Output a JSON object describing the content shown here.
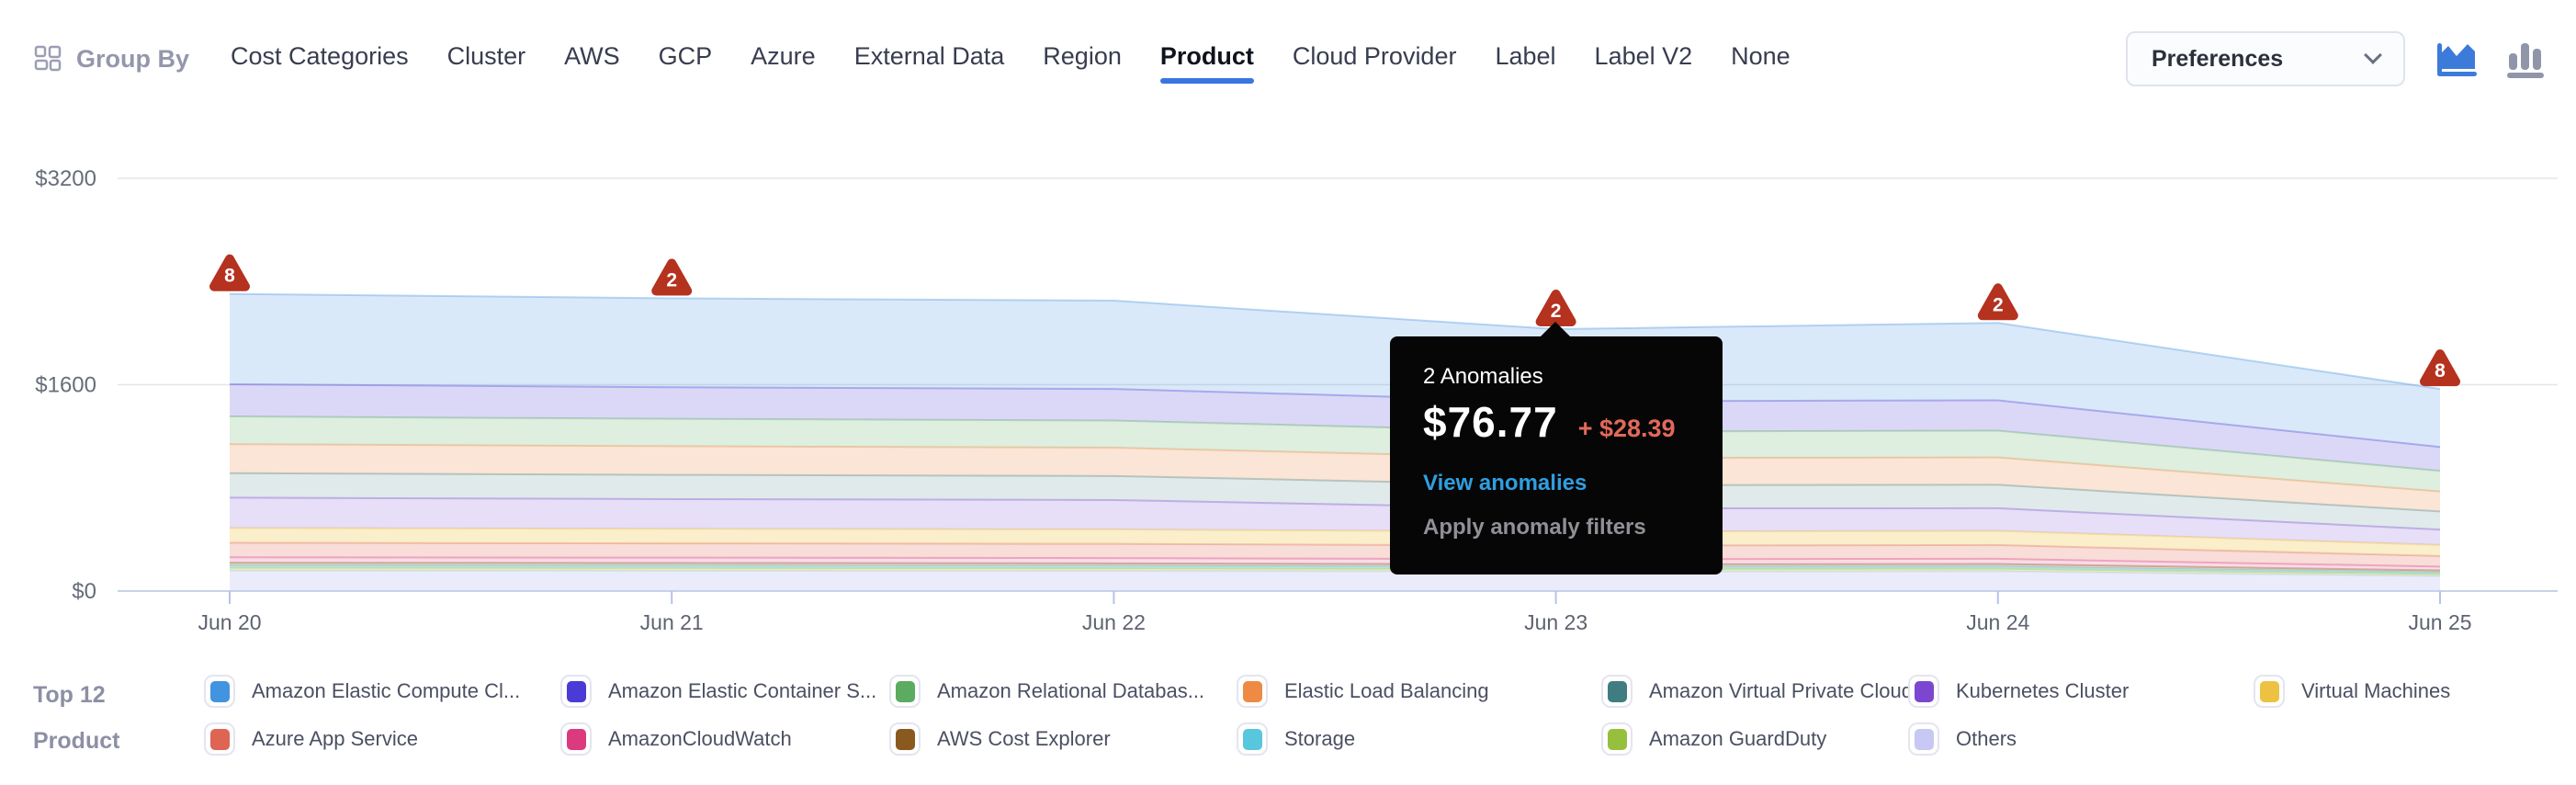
{
  "header": {
    "group_by": {
      "label": "Group By"
    },
    "nav": {
      "items": [
        {
          "label": "Cost Categories",
          "active": false
        },
        {
          "label": "Cluster",
          "active": false
        },
        {
          "label": "AWS",
          "active": false
        },
        {
          "label": "GCP",
          "active": false
        },
        {
          "label": "Azure",
          "active": false
        },
        {
          "label": "External Data",
          "active": false
        },
        {
          "label": "Region",
          "active": false
        },
        {
          "label": "Product",
          "active": true
        },
        {
          "label": "Cloud Provider",
          "active": false
        },
        {
          "label": "Label",
          "active": false
        },
        {
          "label": "Label V2",
          "active": false
        },
        {
          "label": "None",
          "active": false
        }
      ],
      "active_underline_color": "#3b76e0"
    },
    "preferences": {
      "label": "Preferences"
    },
    "chart_type_toggle": {
      "active": "area",
      "active_color": "#3d7bdb",
      "inactive_color": "#9095a9"
    }
  },
  "chart_data": {
    "type": "area",
    "stacked": true,
    "x": [
      "Jun 20",
      "Jun 21",
      "Jun 22",
      "Jun 23",
      "Jun 24",
      "Jun 25"
    ],
    "y_axis": {
      "min": 0,
      "max": 3200,
      "ticks": [
        {
          "value": 0,
          "label": "$0"
        },
        {
          "value": 1600,
          "label": "$1600"
        },
        {
          "value": 3200,
          "label": "$3200"
        }
      ]
    },
    "grid": true,
    "legend_position": "bottom",
    "series": [
      {
        "name": "Amazon Elastic Compute Cloud",
        "color": "#4293E0",
        "fill_alpha": 0.2,
        "values": [
          700,
          690,
          685,
          560,
          600,
          450
        ]
      },
      {
        "name": "Amazon Elastic Container Service",
        "color": "#4A3AD6",
        "fill_alpha": 0.2,
        "values": [
          250,
          245,
          245,
          235,
          235,
          185
        ]
      },
      {
        "name": "Amazon Relational Database Service",
        "color": "#5BAB60",
        "fill_alpha": 0.2,
        "values": [
          215,
          212,
          210,
          205,
          208,
          160
        ]
      },
      {
        "name": "Elastic Load Balancing",
        "color": "#EE8A43",
        "fill_alpha": 0.22,
        "values": [
          225,
          222,
          220,
          210,
          212,
          155
        ]
      },
      {
        "name": "Amazon Virtual Private Cloud",
        "color": "#3F7D80",
        "fill_alpha": 0.16,
        "values": [
          190,
          188,
          186,
          180,
          182,
          140
        ]
      },
      {
        "name": "Kubernetes Cluster",
        "color": "#7B47D1",
        "fill_alpha": 0.18,
        "values": [
          235,
          230,
          228,
          180,
          175,
          120
        ]
      },
      {
        "name": "Virtual Machines",
        "color": "#EDC243",
        "fill_alpha": 0.28,
        "values": [
          115,
          113,
          112,
          108,
          110,
          85
        ]
      },
      {
        "name": "Azure App Service",
        "color": "#DE6454",
        "fill_alpha": 0.22,
        "values": [
          112,
          111,
          110,
          106,
          107,
          82
        ]
      },
      {
        "name": "AmazonCloudWatch",
        "color": "#DB3A7F",
        "fill_alpha": 0.18,
        "values": [
          42,
          41,
          41,
          39,
          40,
          30
        ]
      },
      {
        "name": "AWS Cost Explorer",
        "color": "#8A591F",
        "fill_alpha": 0.25,
        "values": [
          22,
          22,
          21,
          21,
          21,
          16
        ]
      },
      {
        "name": "Storage",
        "color": "#58C6DD",
        "fill_alpha": 0.3,
        "values": [
          16,
          16,
          16,
          15,
          15,
          12
        ]
      },
      {
        "name": "Amazon GuardDuty",
        "color": "#96BF3D",
        "fill_alpha": 0.28,
        "values": [
          24,
          24,
          23,
          22,
          22,
          17
        ]
      },
      {
        "name": "Others",
        "color": "#C7C8F4",
        "fill_alpha": 0.35,
        "values": [
          158,
          156,
          155,
          150,
          152,
          115
        ]
      }
    ],
    "anomalies": [
      {
        "x": "Jun 20",
        "count": 8
      },
      {
        "x": "Jun 21",
        "count": 2
      },
      {
        "x": "Jun 23",
        "count": 2
      },
      {
        "x": "Jun 24",
        "count": 2
      },
      {
        "x": "Jun 25",
        "count": 8
      }
    ],
    "anomaly_marker_color": "#b5321f"
  },
  "tooltip": {
    "title": "2 Anomalies",
    "amount": "$76.77",
    "delta": "+ $28.39",
    "link_primary": "View anomalies",
    "link_secondary": "Apply anomaly filters",
    "colors": {
      "background": "#060606",
      "delta": "#e2695a",
      "link": "#2f9fe0",
      "secondary_link": "#8f9196"
    }
  },
  "legend": {
    "title_lines": [
      "Top 12",
      "Product"
    ],
    "items": [
      {
        "label": "Amazon Elastic Compute Cl...",
        "color": "#4293E0"
      },
      {
        "label": "Amazon Elastic Container S...",
        "color": "#4A3AD6"
      },
      {
        "label": "Amazon Relational Databas...",
        "color": "#5BAB60"
      },
      {
        "label": "Elastic Load Balancing",
        "color": "#EE8A43"
      },
      {
        "label": "Amazon Virtual Private Cloud",
        "color": "#3F7D80"
      },
      {
        "label": "Kubernetes Cluster",
        "color": "#7B47D1"
      },
      {
        "label": "Virtual Machines",
        "color": "#EDC243"
      },
      {
        "label": "Azure App Service",
        "color": "#DE6454"
      },
      {
        "label": "AmazonCloudWatch",
        "color": "#DB3A7F"
      },
      {
        "label": "AWS Cost Explorer",
        "color": "#8A591F"
      },
      {
        "label": "Storage",
        "color": "#58C6DD"
      },
      {
        "label": "Amazon GuardDuty",
        "color": "#96BF3D"
      },
      {
        "label": "Others",
        "color": "#C7C8F4"
      }
    ]
  }
}
